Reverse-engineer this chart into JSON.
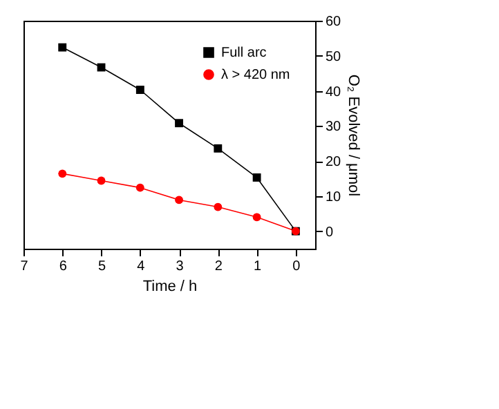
{
  "chart_data": {
    "type": "line",
    "xlabel": "Time / h",
    "ylabel": "O₂ Evolved / μmol",
    "x": [
      0,
      1,
      2,
      3,
      4,
      5,
      6
    ],
    "series": [
      {
        "name": "Full arc",
        "color": "#000000",
        "marker": "square",
        "values": [
          0,
          15.3,
          23.6,
          30.8,
          40.3,
          46.7,
          52.4
        ]
      },
      {
        "name": "λ > 420 nm",
        "color": "#ff0000",
        "marker": "circle",
        "values": [
          0,
          4.0,
          6.9,
          8.9,
          12.4,
          14.4,
          16.4
        ]
      }
    ],
    "xlim": [
      7,
      -0.5
    ],
    "xticks": [
      0,
      1,
      2,
      3,
      4,
      5,
      6,
      7
    ],
    "ylim": [
      -5,
      60
    ],
    "yticks": [
      0,
      10,
      20,
      30,
      40,
      50,
      60
    ],
    "grid": false,
    "legend": "top right"
  }
}
